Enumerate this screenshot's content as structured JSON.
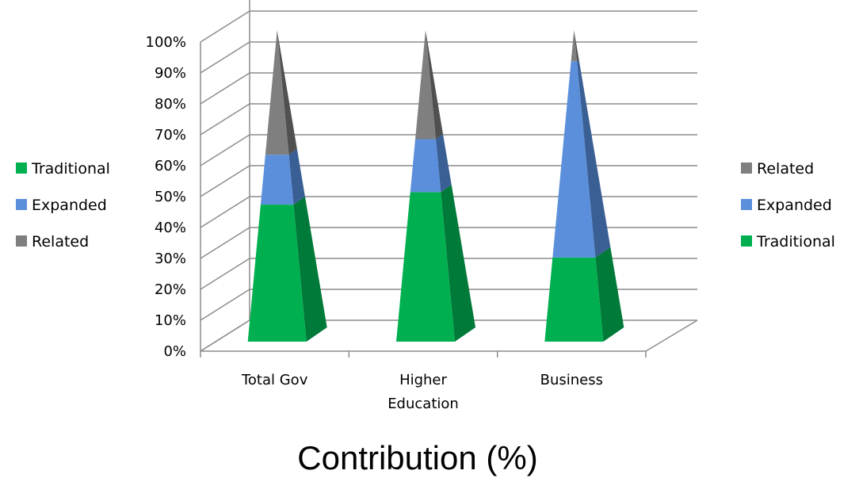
{
  "chart_data": {
    "type": "bar",
    "subtype": "3d-stacked-100-pyramid",
    "title": "Contribution (%)",
    "categories": [
      "Total Gov",
      "Higher Education",
      "Business"
    ],
    "series": [
      {
        "name": "Traditional",
        "values": [
          44,
          48,
          27
        ],
        "color": "#00b050",
        "side_color": "#007a38"
      },
      {
        "name": "Expanded",
        "values": [
          16,
          17,
          63
        ],
        "color": "#5b8fdb",
        "side_color": "#3a5f94"
      },
      {
        "name": "Related",
        "values": [
          40,
          35,
          10
        ],
        "color": "#7f7f7f",
        "side_color": "#505050"
      }
    ],
    "ylim": [
      0,
      100
    ],
    "yticks": [
      "0%",
      "10%",
      "20%",
      "30%",
      "40%",
      "50%",
      "60%",
      "70%",
      "80%",
      "90%",
      "100%"
    ],
    "grid": true,
    "legends": [
      {
        "placement": "left",
        "items": [
          "Traditional",
          "Expanded",
          "Related"
        ]
      },
      {
        "placement": "right",
        "items": [
          "Related",
          "Expanded",
          "Traditional"
        ]
      }
    ]
  }
}
